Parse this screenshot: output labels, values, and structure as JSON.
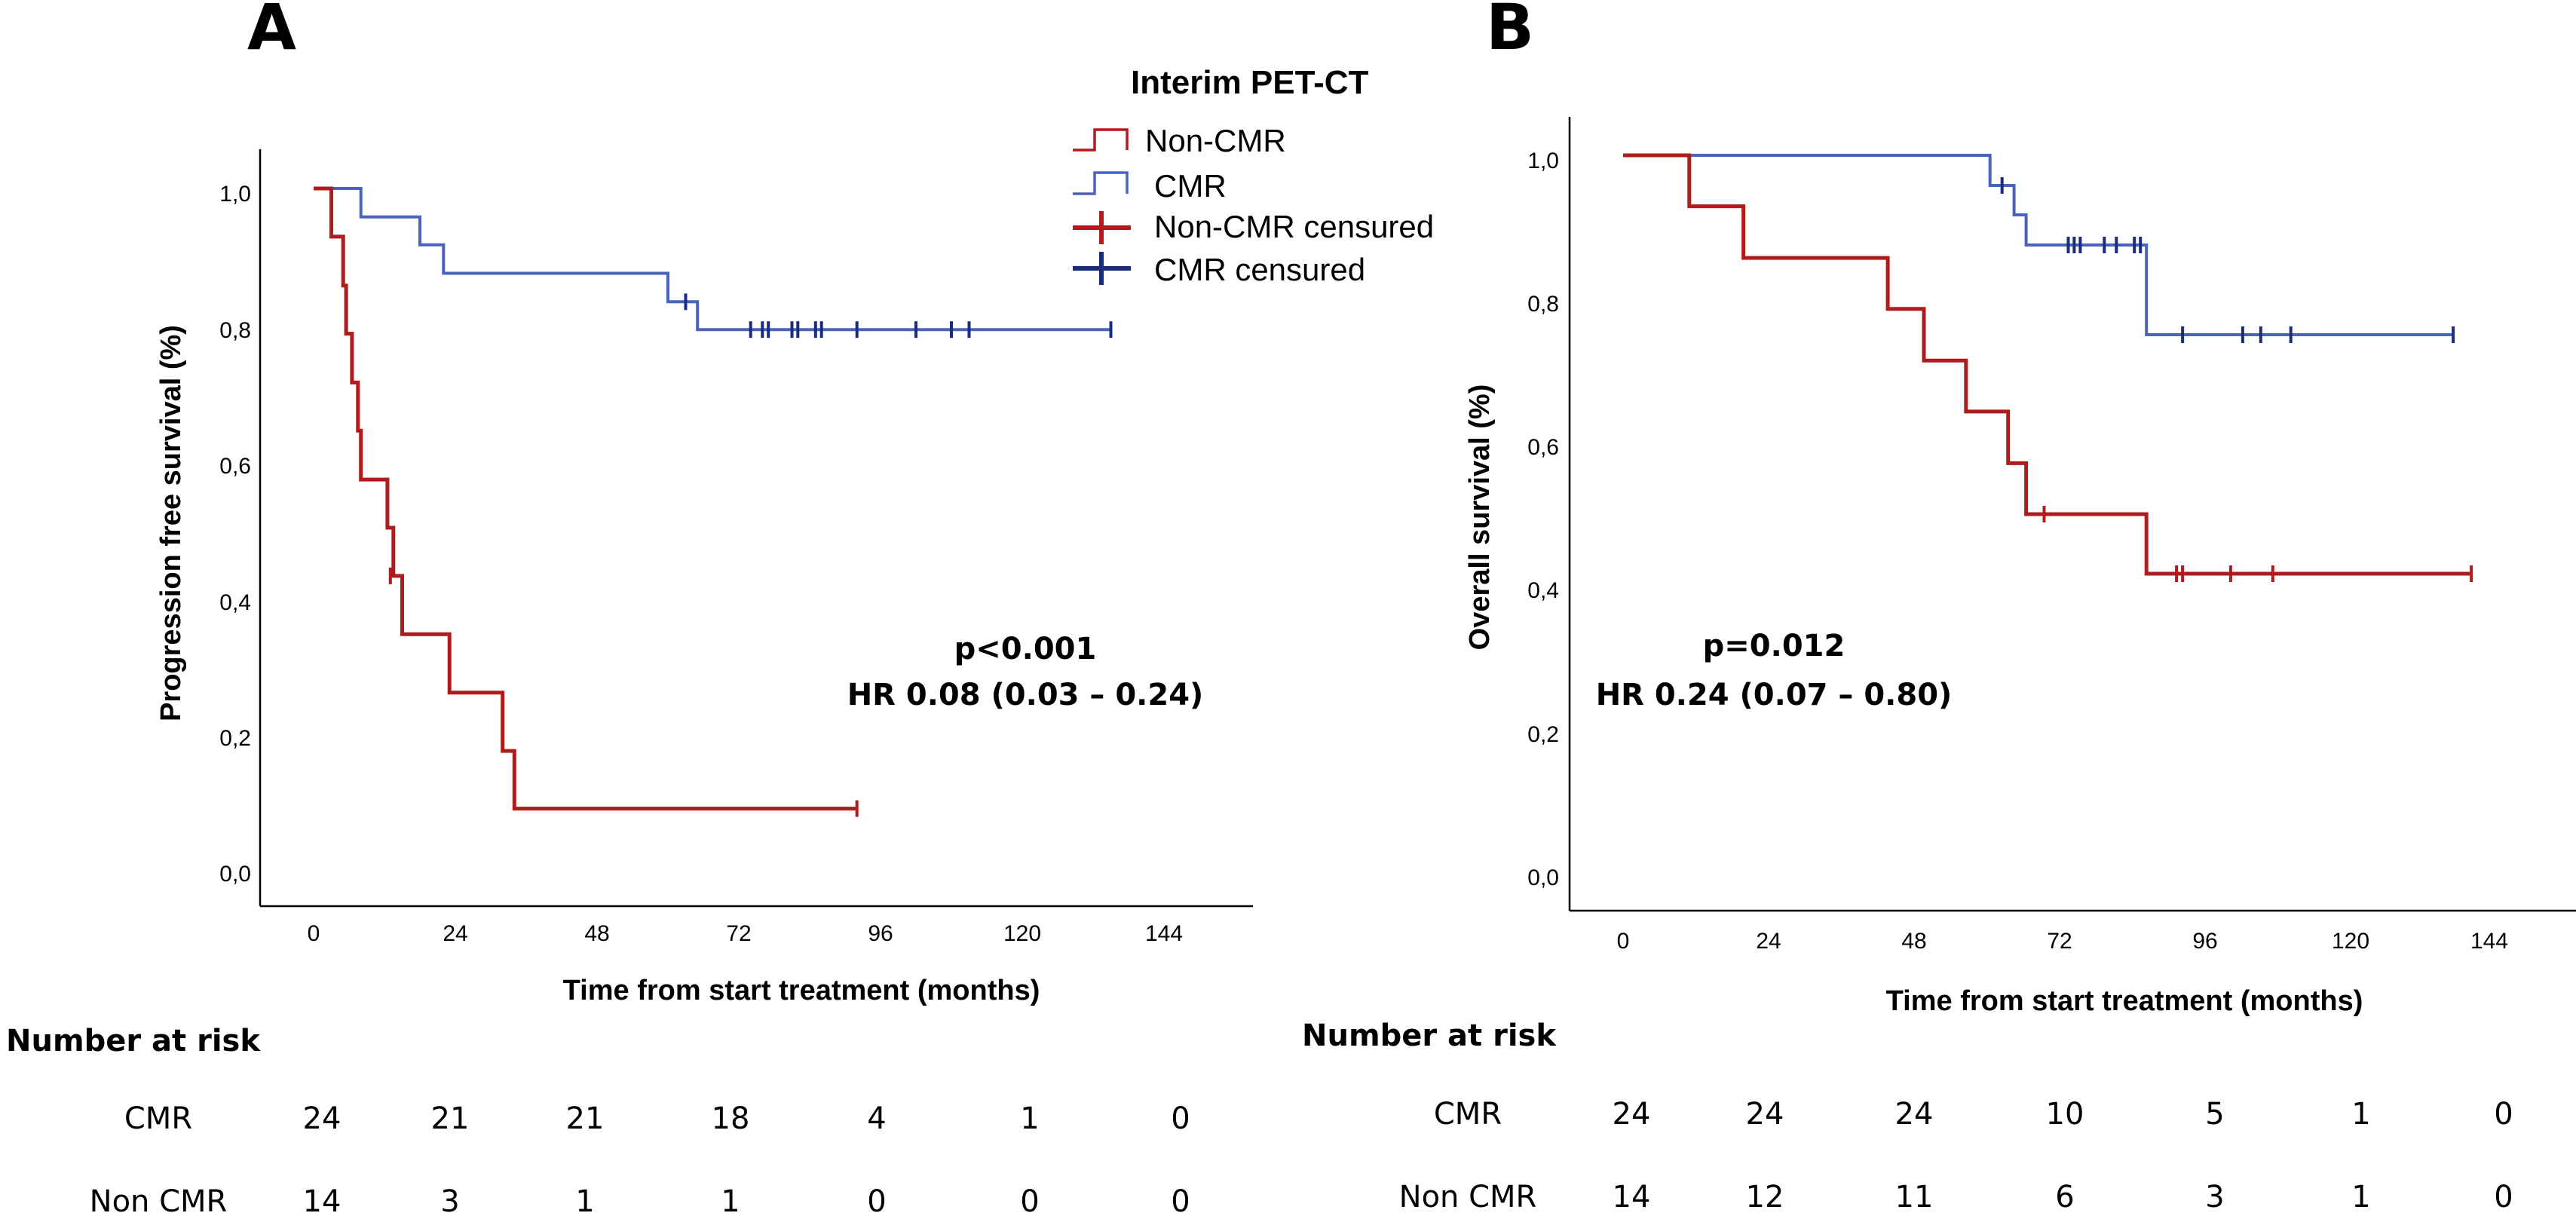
{
  "colors": {
    "non_cmr": "#b01c1c",
    "cmr": "#4a63c0",
    "non_cmr_censured": "#b01c1c",
    "cmr_censured": "#1b2c80",
    "axis": "#000000"
  },
  "legend": {
    "title": "Interim PET-CT",
    "items": [
      {
        "label": "Non-CMR",
        "kind": "step",
        "color": "#b01c1c"
      },
      {
        "label": "CMR",
        "kind": "step",
        "color": "#4a63c0"
      },
      {
        "label": "Non-CMR censured",
        "kind": "cross",
        "color": "#b01c1c"
      },
      {
        "label": "CMR censured",
        "kind": "cross",
        "color": "#1b2c80"
      }
    ]
  },
  "chart_data": [
    {
      "panel": "A",
      "type": "line",
      "subtype": "kaplan-meier",
      "xlabel": "Time from start treatment (months)",
      "ylabel": "Progression free survival (%)",
      "xlim": [
        0,
        144
      ],
      "ylim": [
        0,
        1
      ],
      "x_ticks": [
        "0",
        "24",
        "48",
        "72",
        "96",
        "120",
        "144"
      ],
      "y_ticks": [
        "0,0",
        "0,2",
        "0,4",
        "0,6",
        "0,8",
        "1,0"
      ],
      "annotation": [
        "p<0.001",
        "HR 0.08 (0.03 – 0.24)"
      ],
      "series": [
        {
          "name": "CMR",
          "color": "#4a63c0",
          "steps": [
            [
              0,
              1.0
            ],
            [
              8,
              0.958
            ],
            [
              18,
              0.917
            ],
            [
              22,
              0.875
            ],
            [
              60,
              0.833
            ],
            [
              65,
              0.792
            ],
            [
              135,
              0.792
            ]
          ],
          "censored": [
            [
              63,
              0.833
            ],
            [
              74,
              0.792
            ],
            [
              76,
              0.792
            ],
            [
              77,
              0.792
            ],
            [
              81,
              0.792
            ],
            [
              82,
              0.792
            ],
            [
              85,
              0.792
            ],
            [
              86,
              0.792
            ],
            [
              92,
              0.792
            ],
            [
              102,
              0.792
            ],
            [
              108,
              0.792
            ],
            [
              111,
              0.792
            ],
            [
              135,
              0.792
            ]
          ]
        },
        {
          "name": "Non-CMR",
          "color": "#b01c1c",
          "steps": [
            [
              0,
              1.0
            ],
            [
              3,
              0.929
            ],
            [
              5,
              0.857
            ],
            [
              5.5,
              0.786
            ],
            [
              6.5,
              0.714
            ],
            [
              7.5,
              0.643
            ],
            [
              8,
              0.571
            ],
            [
              12.5,
              0.5
            ],
            [
              13.5,
              0.429
            ],
            [
              15,
              0.343
            ],
            [
              23,
              0.257
            ],
            [
              32,
              0.171
            ],
            [
              34,
              0.086
            ],
            [
              92,
              0.086
            ]
          ],
          "censored": [
            [
              13,
              0.429
            ],
            [
              92,
              0.086
            ]
          ]
        }
      ],
      "risk_table": {
        "title": "Number at risk",
        "rows": [
          {
            "label": "CMR",
            "values": [
              "24",
              "21",
              "21",
              "18",
              "4",
              "1",
              "0"
            ]
          },
          {
            "label": "Non CMR",
            "values": [
              "14",
              "3",
              "1",
              "1",
              "0",
              "0",
              "0"
            ]
          }
        ]
      }
    },
    {
      "panel": "B",
      "type": "line",
      "subtype": "kaplan-meier",
      "xlabel": "Time from start treatment (months)",
      "ylabel": "Overall survival (%)",
      "xlim": [
        0,
        144
      ],
      "ylim": [
        0,
        1
      ],
      "x_ticks": [
        "0",
        "24",
        "48",
        "72",
        "96",
        "120",
        "144"
      ],
      "y_ticks": [
        "0,0",
        "0,2",
        "0,4",
        "0,6",
        "0,8",
        "1,0"
      ],
      "annotation": [
        "p=0.012",
        "HR 0.24 (0.07 – 0.80)"
      ],
      "series": [
        {
          "name": "CMR",
          "color": "#4a63c0",
          "steps": [
            [
              0,
              1.0
            ],
            [
              61,
              0.958
            ],
            [
              65,
              0.917
            ],
            [
              67,
              0.875
            ],
            [
              87,
              0.75
            ],
            [
              138,
              0.75
            ]
          ],
          "censored": [
            [
              63,
              0.958
            ],
            [
              74,
              0.875
            ],
            [
              75,
              0.875
            ],
            [
              76,
              0.875
            ],
            [
              80,
              0.875
            ],
            [
              82,
              0.875
            ],
            [
              85,
              0.875
            ],
            [
              86,
              0.875
            ],
            [
              93,
              0.75
            ],
            [
              103,
              0.75
            ],
            [
              106,
              0.75
            ],
            [
              111,
              0.75
            ],
            [
              138,
              0.75
            ]
          ]
        },
        {
          "name": "Non-CMR",
          "color": "#b01c1c",
          "steps": [
            [
              0,
              1.0
            ],
            [
              11,
              0.929
            ],
            [
              20,
              0.857
            ],
            [
              44,
              0.786
            ],
            [
              50,
              0.714
            ],
            [
              57,
              0.643
            ],
            [
              64,
              0.571
            ],
            [
              67,
              0.5
            ],
            [
              87,
              0.417
            ],
            [
              141,
              0.417
            ]
          ],
          "censored": [
            [
              70,
              0.5
            ],
            [
              92,
              0.417
            ],
            [
              93,
              0.417
            ],
            [
              101,
              0.417
            ],
            [
              108,
              0.417
            ],
            [
              141,
              0.417
            ]
          ]
        }
      ],
      "risk_table": {
        "title": "Number at risk",
        "rows": [
          {
            "label": "CMR",
            "values": [
              "24",
              "24",
              "24",
              "10",
              "5",
              "1",
              "0"
            ]
          },
          {
            "label": "Non CMR",
            "values": [
              "14",
              "12",
              "11",
              "6",
              "3",
              "1",
              "0"
            ]
          }
        ]
      }
    }
  ]
}
